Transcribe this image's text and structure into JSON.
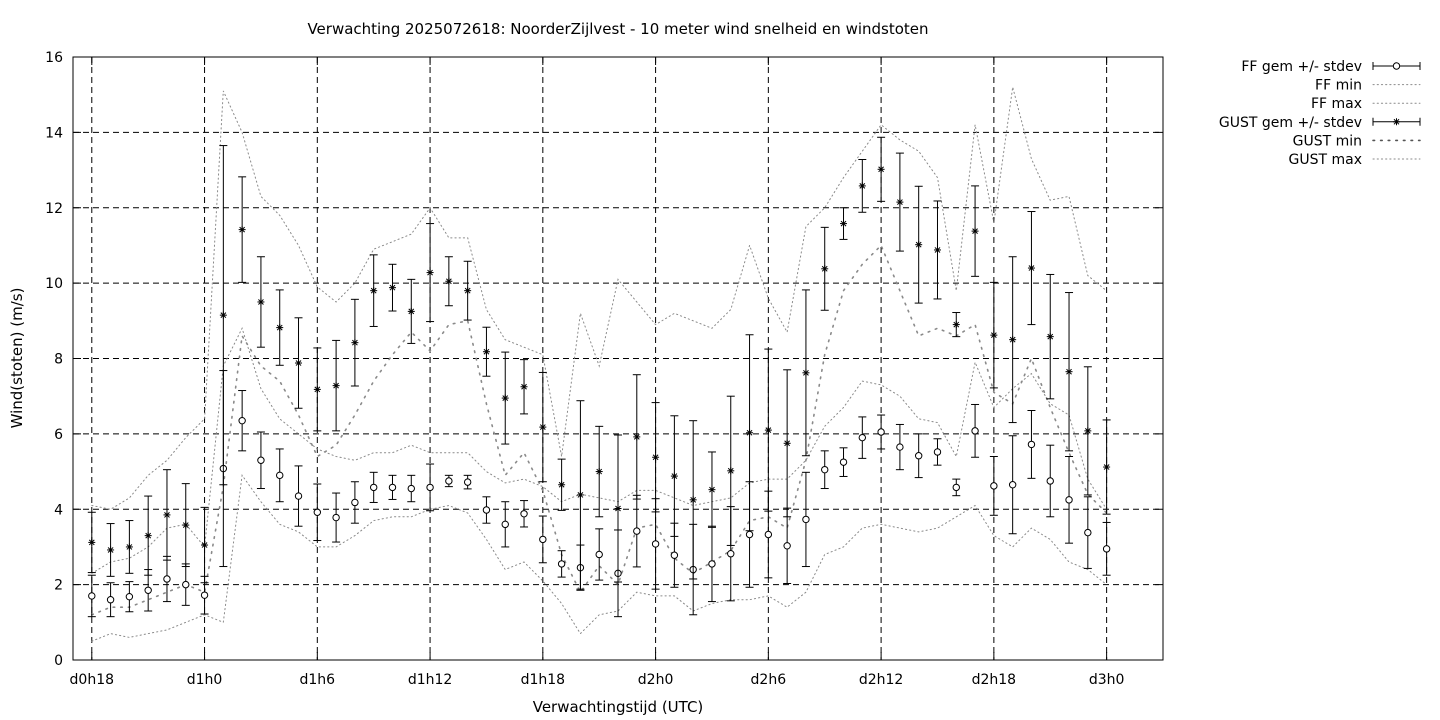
{
  "chart_data": {
    "type": "line",
    "title": "Verwachting 2025072618: NoorderZijlvest - 10 meter wind snelheid en windstoten",
    "xlabel": "Verwachtingstijd (UTC)",
    "ylabel": "Wind(stoten) (m/s)",
    "xlim": [
      17,
      75
    ],
    "ylim": [
      0,
      16
    ],
    "x_tick_values": [
      18,
      24,
      30,
      36,
      42,
      48,
      54,
      60,
      66,
      72
    ],
    "x_tick_labels": [
      "d0h18",
      "d1h0",
      "d1h6",
      "d1h12",
      "d1h18",
      "d2h0",
      "d2h6",
      "d2h12",
      "d2h18",
      "d3h0"
    ],
    "y_ticks": [
      0,
      2,
      4,
      6,
      8,
      10,
      12,
      14,
      16
    ],
    "grid": true,
    "legend_position": "right, outside plot",
    "x": [
      18,
      19,
      20,
      21,
      22,
      23,
      24,
      25,
      26,
      27,
      28,
      29,
      30,
      31,
      32,
      33,
      34,
      35,
      36,
      37,
      38,
      39,
      40,
      41,
      42,
      43,
      44,
      45,
      46,
      47,
      48,
      49,
      50,
      51,
      52,
      53,
      54,
      55,
      56,
      57,
      58,
      59,
      60,
      61,
      62,
      63,
      64,
      65,
      66,
      67,
      68,
      69,
      70,
      71,
      72
    ],
    "series": [
      {
        "name": "FF gem +/- stdev",
        "style": "errorbars-circle",
        "values": [
          1.7,
          1.6,
          1.68,
          1.85,
          2.15,
          2.0,
          1.72,
          5.08,
          6.35,
          5.3,
          4.9,
          4.35,
          3.92,
          3.78,
          4.18,
          4.58,
          4.58,
          4.55,
          4.58,
          4.75,
          4.72,
          3.98,
          3.6,
          3.88,
          3.2,
          2.55,
          2.45,
          2.8,
          2.3,
          3.42,
          3.08,
          2.78,
          2.4,
          2.55,
          2.82,
          3.33,
          3.33,
          3.03,
          3.73,
          5.05,
          5.25,
          5.9,
          6.05,
          5.65,
          5.42,
          5.52,
          4.58,
          6.08,
          4.62,
          4.65,
          5.72,
          4.75,
          4.25,
          3.38,
          2.95
        ],
        "stdev": [
          0.55,
          0.45,
          0.4,
          0.55,
          0.6,
          0.55,
          0.5,
          2.6,
          0.8,
          0.75,
          0.7,
          0.8,
          0.75,
          0.65,
          0.55,
          0.4,
          0.32,
          0.35,
          0.62,
          0.15,
          0.18,
          0.35,
          0.6,
          0.35,
          0.62,
          0.35,
          0.6,
          0.68,
          1.15,
          0.95,
          1.2,
          0.85,
          1.2,
          1.0,
          1.25,
          1.4,
          1.15,
          1.0,
          1.25,
          0.5,
          0.38,
          0.55,
          0.45,
          0.6,
          0.58,
          0.35,
          0.22,
          0.7,
          0.78,
          1.3,
          0.9,
          0.95,
          1.15,
          0.95,
          0.7
        ]
      },
      {
        "name": "FF min",
        "style": "dotted",
        "values": [
          0.5,
          0.7,
          0.6,
          0.7,
          0.8,
          1.0,
          1.2,
          1.0,
          4.9,
          4.2,
          3.6,
          3.4,
          3.0,
          3.0,
          3.3,
          3.7,
          3.8,
          3.8,
          4.0,
          4.1,
          3.9,
          3.2,
          2.4,
          2.6,
          2.1,
          1.5,
          0.7,
          1.2,
          1.3,
          1.8,
          1.7,
          1.7,
          1.3,
          1.5,
          1.6,
          1.6,
          1.7,
          1.4,
          1.8,
          2.8,
          3.0,
          3.5,
          3.6,
          3.5,
          3.4,
          3.5,
          3.8,
          4.1,
          3.3,
          3.0,
          3.5,
          3.2,
          2.6,
          2.4,
          2.0
        ]
      },
      {
        "name": "FF max",
        "style": "dotted",
        "values": [
          2.3,
          2.6,
          2.7,
          3.0,
          3.5,
          3.6,
          3.0,
          7.8,
          8.8,
          7.2,
          6.4,
          6.0,
          5.6,
          5.4,
          5.3,
          5.5,
          5.5,
          5.7,
          5.5,
          5.5,
          5.5,
          5.0,
          4.7,
          4.8,
          4.6,
          4.2,
          4.4,
          4.3,
          4.2,
          4.5,
          4.5,
          4.3,
          4.1,
          4.2,
          4.3,
          4.7,
          4.8,
          4.8,
          5.3,
          6.2,
          6.7,
          7.4,
          7.3,
          7.0,
          6.4,
          6.3,
          5.4,
          7.9,
          6.7,
          7.2,
          7.6,
          6.8,
          6.5,
          4.8,
          4.0
        ]
      },
      {
        "name": "GUST gem +/- stdev",
        "style": "errorbars-star",
        "values": [
          3.12,
          2.92,
          3.0,
          3.3,
          3.85,
          3.58,
          3.05,
          9.15,
          11.42,
          9.5,
          8.82,
          7.88,
          7.18,
          7.28,
          8.42,
          9.8,
          9.88,
          9.25,
          10.28,
          10.05,
          9.8,
          8.18,
          6.95,
          7.25,
          6.18,
          4.65,
          4.38,
          5.0,
          4.02,
          5.92,
          5.38,
          4.88,
          4.25,
          4.52,
          5.02,
          6.03,
          6.1,
          5.75,
          7.62,
          10.38,
          11.58,
          12.58,
          13.02,
          12.15,
          11.02,
          10.88,
          8.9,
          11.38,
          8.62,
          8.5,
          10.4,
          8.58,
          7.65,
          6.08,
          5.12
        ],
        "stdev": [
          0.8,
          0.7,
          0.7,
          1.05,
          1.2,
          1.1,
          1.0,
          4.5,
          1.4,
          1.2,
          1.0,
          1.2,
          1.1,
          1.2,
          1.15,
          0.95,
          0.62,
          0.85,
          1.3,
          0.65,
          0.78,
          0.65,
          1.22,
          0.72,
          1.45,
          0.68,
          2.5,
          1.2,
          1.95,
          1.65,
          1.45,
          1.6,
          2.1,
          1.0,
          1.98,
          2.6,
          2.15,
          1.95,
          2.2,
          1.1,
          0.42,
          0.7,
          0.85,
          1.3,
          1.55,
          1.3,
          0.32,
          1.2,
          1.4,
          2.2,
          1.5,
          1.65,
          2.1,
          1.7,
          1.25
        ]
      },
      {
        "name": "GUST min",
        "style": "dots",
        "values": [
          1.2,
          1.4,
          1.4,
          1.6,
          1.8,
          2.0,
          1.8,
          4.6,
          8.6,
          7.8,
          7.4,
          6.5,
          5.4,
          5.7,
          6.5,
          7.4,
          8.1,
          8.7,
          8.2,
          8.9,
          9.0,
          6.8,
          4.9,
          5.5,
          4.5,
          2.8,
          1.8,
          2.5,
          2.0,
          3.5,
          3.6,
          2.7,
          2.3,
          2.6,
          2.9,
          3.7,
          3.8,
          3.5,
          5.3,
          8.1,
          9.8,
          10.5,
          11.0,
          9.8,
          8.6,
          8.8,
          8.6,
          8.9,
          7.1,
          6.8,
          8.0,
          6.7,
          5.5,
          4.4,
          3.9
        ]
      },
      {
        "name": "GUST max",
        "style": "dotted",
        "values": [
          4.1,
          4.0,
          4.3,
          4.9,
          5.3,
          5.9,
          6.4,
          15.1,
          14.0,
          12.3,
          11.8,
          11.0,
          9.9,
          9.5,
          10.0,
          10.9,
          11.1,
          11.3,
          12.0,
          11.2,
          11.2,
          9.3,
          8.5,
          8.3,
          8.1,
          5.4,
          9.2,
          7.8,
          10.1,
          9.5,
          8.9,
          9.2,
          9.0,
          8.8,
          9.3,
          11.0,
          9.6,
          8.7,
          11.5,
          12.0,
          12.8,
          13.5,
          14.2,
          13.8,
          13.5,
          12.8,
          9.8,
          14.2,
          11.6,
          15.2,
          13.3,
          12.2,
          12.3,
          10.2,
          9.8
        ]
      }
    ]
  }
}
